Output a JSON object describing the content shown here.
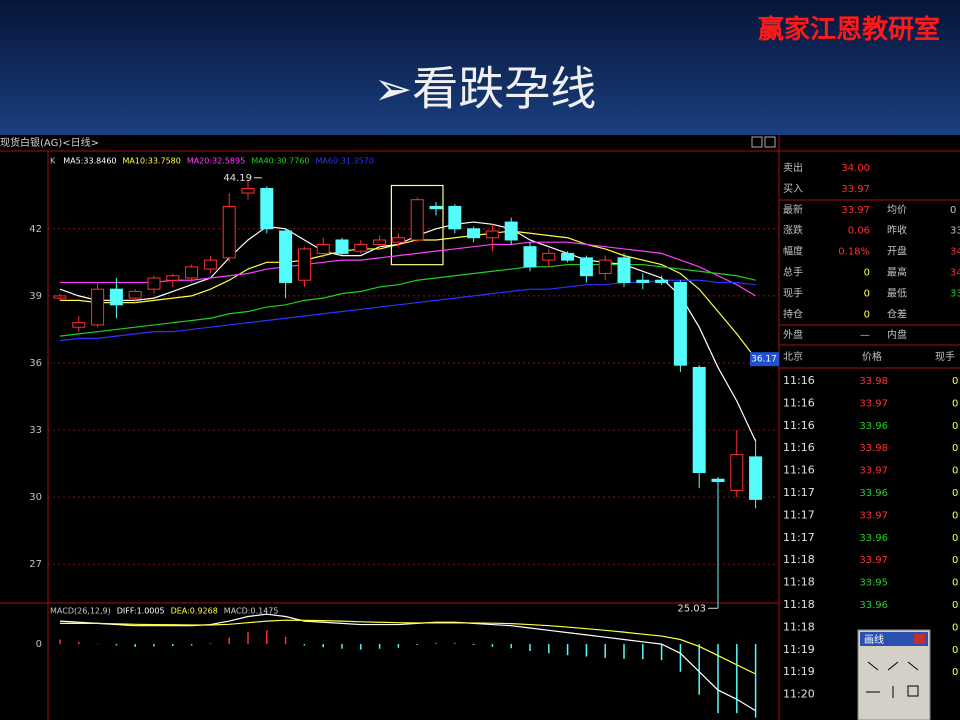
{
  "header": {
    "brand": "赢家江恩教研室",
    "title": "➢看跌孕线"
  },
  "window_title": "现货白银(AG)<日线>",
  "chart_data": [
    {
      "type": "candlestick",
      "candle_name": "K",
      "ylim": [
        25.4,
        45.3
      ],
      "yticks": [
        27,
        30,
        33,
        36,
        39,
        42
      ],
      "grid": true,
      "up_color": "#ff3030",
      "down_color": "#54fcfc",
      "open": [
        38.9,
        37.6,
        37.7,
        39.3,
        38.9,
        39.3,
        39.7,
        39.8,
        40.2,
        40.7,
        43.6,
        43.8,
        41.9,
        39.7,
        40.9,
        41.5,
        41.0,
        41.3,
        41.4,
        41.5,
        43.0,
        43.0,
        42.0,
        41.6,
        42.3,
        41.2,
        40.6,
        40.9,
        40.7,
        40.0,
        40.7,
        39.7,
        39.7,
        39.6,
        35.8,
        30.8,
        30.3,
        31.8
      ],
      "high": [
        39.1,
        38.1,
        39.6,
        39.8,
        39.3,
        39.9,
        40.0,
        40.4,
        40.8,
        43.6,
        44.19,
        43.9,
        42.0,
        41.2,
        41.6,
        41.6,
        41.5,
        41.7,
        41.8,
        43.4,
        43.2,
        43.1,
        42.1,
        42.2,
        42.5,
        41.4,
        41.1,
        41.0,
        40.8,
        40.8,
        40.9,
        40.0,
        39.9,
        39.7,
        35.9,
        30.9,
        33.0,
        32.6
      ],
      "low": [
        38.8,
        37.4,
        37.6,
        38.0,
        38.7,
        39.1,
        39.4,
        39.6,
        40.0,
        40.5,
        43.3,
        41.8,
        38.9,
        39.4,
        40.7,
        40.8,
        40.9,
        41.1,
        41.2,
        41.4,
        42.6,
        41.8,
        41.4,
        41.0,
        41.3,
        40.1,
        40.3,
        40.5,
        39.6,
        39.7,
        39.4,
        39.3,
        39.5,
        35.6,
        30.4,
        25.03,
        30.0,
        29.5
      ],
      "close": [
        39.0,
        37.8,
        39.3,
        38.6,
        39.2,
        39.8,
        39.9,
        40.3,
        40.6,
        43.0,
        43.8,
        42.0,
        39.6,
        41.1,
        41.3,
        40.9,
        41.3,
        41.5,
        41.6,
        43.3,
        42.9,
        42.0,
        41.6,
        41.9,
        41.5,
        40.3,
        40.9,
        40.6,
        39.9,
        40.6,
        39.6,
        39.6,
        39.6,
        35.9,
        31.1,
        30.7,
        31.9,
        29.9
      ],
      "series": [
        {
          "name": "MA5:33.8460",
          "color": "#ffffff",
          "values": [
            39.3,
            39.0,
            38.8,
            38.8,
            38.8,
            38.9,
            39.2,
            39.5,
            39.8,
            40.7,
            41.5,
            42.1,
            42.0,
            41.5,
            41.0,
            40.8,
            40.8,
            41.2,
            41.3,
            41.7,
            42.0,
            42.2,
            42.3,
            42.2,
            42.0,
            41.5,
            41.2,
            40.9,
            40.6,
            40.5,
            40.4,
            40.1,
            39.8,
            39.0,
            37.6,
            35.8,
            34.3,
            32.5
          ]
        },
        {
          "name": "MA10:33.7580",
          "color": "#ffff40",
          "values": [
            38.8,
            38.8,
            38.7,
            38.7,
            38.7,
            38.8,
            38.9,
            39.0,
            39.3,
            39.7,
            40.2,
            40.5,
            40.5,
            40.6,
            40.8,
            41.0,
            41.1,
            41.1,
            41.3,
            41.5,
            41.5,
            41.6,
            41.7,
            41.8,
            41.9,
            41.8,
            41.7,
            41.6,
            41.3,
            41.1,
            40.8,
            40.6,
            40.4,
            40.0,
            39.3,
            38.3,
            37.3,
            36.2
          ]
        },
        {
          "name": "MA20:32.5895",
          "color": "#ff40ff",
          "values": [
            39.6,
            39.6,
            39.6,
            39.6,
            39.6,
            39.6,
            39.7,
            39.7,
            39.8,
            39.9,
            40.0,
            40.2,
            40.3,
            40.4,
            40.5,
            40.6,
            40.6,
            40.7,
            40.8,
            40.9,
            41.0,
            41.1,
            41.2,
            41.3,
            41.3,
            41.4,
            41.4,
            41.4,
            41.3,
            41.2,
            41.1,
            41.0,
            40.9,
            40.6,
            40.3,
            39.9,
            39.5,
            39.0
          ]
        },
        {
          "name": "MA40:30.7760",
          "color": "#20d020",
          "values": [
            37.2,
            37.3,
            37.4,
            37.5,
            37.6,
            37.7,
            37.8,
            37.9,
            38.0,
            38.2,
            38.3,
            38.5,
            38.6,
            38.8,
            38.9,
            39.1,
            39.2,
            39.4,
            39.5,
            39.7,
            39.8,
            39.9,
            40.0,
            40.1,
            40.2,
            40.3,
            40.3,
            40.4,
            40.4,
            40.4,
            40.4,
            40.4,
            40.3,
            40.2,
            40.1,
            40.0,
            39.9,
            39.7
          ]
        },
        {
          "name": "MA60:31.3570",
          "color": "#3030ff",
          "values": [
            37.0,
            37.1,
            37.1,
            37.2,
            37.3,
            37.4,
            37.4,
            37.5,
            37.6,
            37.7,
            37.8,
            37.9,
            38.0,
            38.1,
            38.2,
            38.3,
            38.4,
            38.5,
            38.6,
            38.7,
            38.8,
            38.9,
            39.0,
            39.1,
            39.2,
            39.3,
            39.3,
            39.4,
            39.5,
            39.5,
            39.6,
            39.6,
            39.7,
            39.7,
            39.7,
            39.6,
            39.6,
            39.5
          ]
        }
      ],
      "price_marker": 36.17
    },
    {
      "type": "macd",
      "title": "MACD(26,12,9)",
      "ylim": [
        -3.3,
        1.7
      ],
      "yticks": [
        0
      ],
      "up_color": "#ff3030",
      "down_color": "#54fcfc",
      "histogram_name": "MACD:0.1475",
      "histogram": [
        0.2,
        0.1,
        0.02,
        -0.06,
        -0.12,
        -0.1,
        -0.08,
        -0.06,
        0.04,
        0.28,
        0.54,
        0.6,
        0.32,
        -0.06,
        -0.14,
        -0.2,
        -0.24,
        -0.2,
        -0.16,
        -0.04,
        0.06,
        0.06,
        -0.04,
        -0.12,
        -0.18,
        -0.3,
        -0.4,
        -0.48,
        -0.54,
        -0.6,
        -0.64,
        -0.66,
        -0.7,
        -1.2,
        -2.2,
        -3.0,
        -3.0,
        -3.2
      ],
      "series": [
        {
          "name": "DIFF:1.0005",
          "color": "#ffffff",
          "values": [
            1.0,
            0.95,
            0.9,
            0.85,
            0.8,
            0.8,
            0.8,
            0.8,
            0.85,
            1.0,
            1.2,
            1.3,
            1.2,
            1.0,
            0.95,
            0.9,
            0.85,
            0.85,
            0.85,
            0.9,
            0.95,
            0.95,
            0.9,
            0.85,
            0.8,
            0.7,
            0.6,
            0.5,
            0.4,
            0.3,
            0.2,
            0.1,
            0.0,
            -0.4,
            -1.2,
            -2.0,
            -2.4,
            -2.9
          ]
        },
        {
          "name": "DEA:0.9268",
          "color": "#ffff40",
          "values": [
            0.9,
            0.9,
            0.9,
            0.88,
            0.86,
            0.85,
            0.84,
            0.83,
            0.83,
            0.86,
            0.93,
            1.0,
            1.04,
            1.03,
            1.02,
            1.0,
            0.97,
            0.95,
            0.93,
            0.92,
            0.92,
            0.92,
            0.92,
            0.91,
            0.89,
            0.85,
            0.8,
            0.74,
            0.67,
            0.6,
            0.52,
            0.43,
            0.35,
            0.2,
            -0.1,
            -0.5,
            -0.9,
            -1.3
          ]
        }
      ]
    }
  ],
  "quote": {
    "rows": [
      {
        "label": "卖出",
        "value": "34.00",
        "color": "#ff3030"
      },
      {
        "label": "买入",
        "value": "33.97",
        "color": "#ff3030"
      },
      {
        "label": "最新",
        "value": "33.97",
        "color": "#ff3030",
        "label2": "均价",
        "value2": "0",
        "color2": "#c0c0c0"
      },
      {
        "label": "涨跌",
        "value": "0.06",
        "color": "#ff3030",
        "label2": "昨收",
        "value2": "33",
        "color2": "#c0c0c0"
      },
      {
        "label": "幅度",
        "value": "0.18%",
        "color": "#ff3030",
        "label2": "开盘",
        "value2": "34",
        "color2": "#ff3030"
      },
      {
        "label": "总手",
        "value": "0",
        "color": "#ffff40",
        "label2": "最高",
        "value2": "34",
        "color2": "#ff3030"
      },
      {
        "label": "现手",
        "value": "0",
        "color": "#ffff40",
        "label2": "最低",
        "value2": "33",
        "color2": "#20d020"
      },
      {
        "label": "持仓",
        "value": "0",
        "color": "#ffff40",
        "label2": "仓差"
      },
      {
        "label": "外盘",
        "value": "—",
        "color": "#c0c0c0",
        "label2": "内盘"
      }
    ]
  },
  "trades": {
    "header": [
      "北京",
      "价格",
      "现手"
    ],
    "rows": [
      {
        "time": "11:16",
        "price": "33.98",
        "volume": "0",
        "color": "#ff3030"
      },
      {
        "time": "11:16",
        "price": "33.97",
        "volume": "0",
        "color": "#ff3030"
      },
      {
        "time": "11:16",
        "price": "33.96",
        "volume": "0",
        "color": "#20d020"
      },
      {
        "time": "11:16",
        "price": "33.98",
        "volume": "0",
        "color": "#ff3030"
      },
      {
        "time": "11:16",
        "price": "33.97",
        "volume": "0",
        "color": "#ff3030"
      },
      {
        "time": "11:17",
        "price": "33.96",
        "volume": "0",
        "color": "#20d020"
      },
      {
        "time": "11:17",
        "price": "33.97",
        "volume": "0",
        "color": "#ff3030"
      },
      {
        "time": "11:17",
        "price": "33.96",
        "volume": "0",
        "color": "#20d020"
      },
      {
        "time": "11:18",
        "price": "33.97",
        "volume": "0",
        "color": "#ff3030"
      },
      {
        "time": "11:18",
        "price": "33.95",
        "volume": "0",
        "color": "#20d020"
      },
      {
        "time": "11:18",
        "price": "33.96",
        "volume": "0",
        "color": "#20d020"
      },
      {
        "time": "11:18",
        "volume": "0"
      },
      {
        "time": "11:19",
        "volume": "0"
      },
      {
        "time": "11:19",
        "volume": "0"
      },
      {
        "time": "11:20"
      }
    ]
  },
  "toolbox": {
    "title": "画线"
  }
}
